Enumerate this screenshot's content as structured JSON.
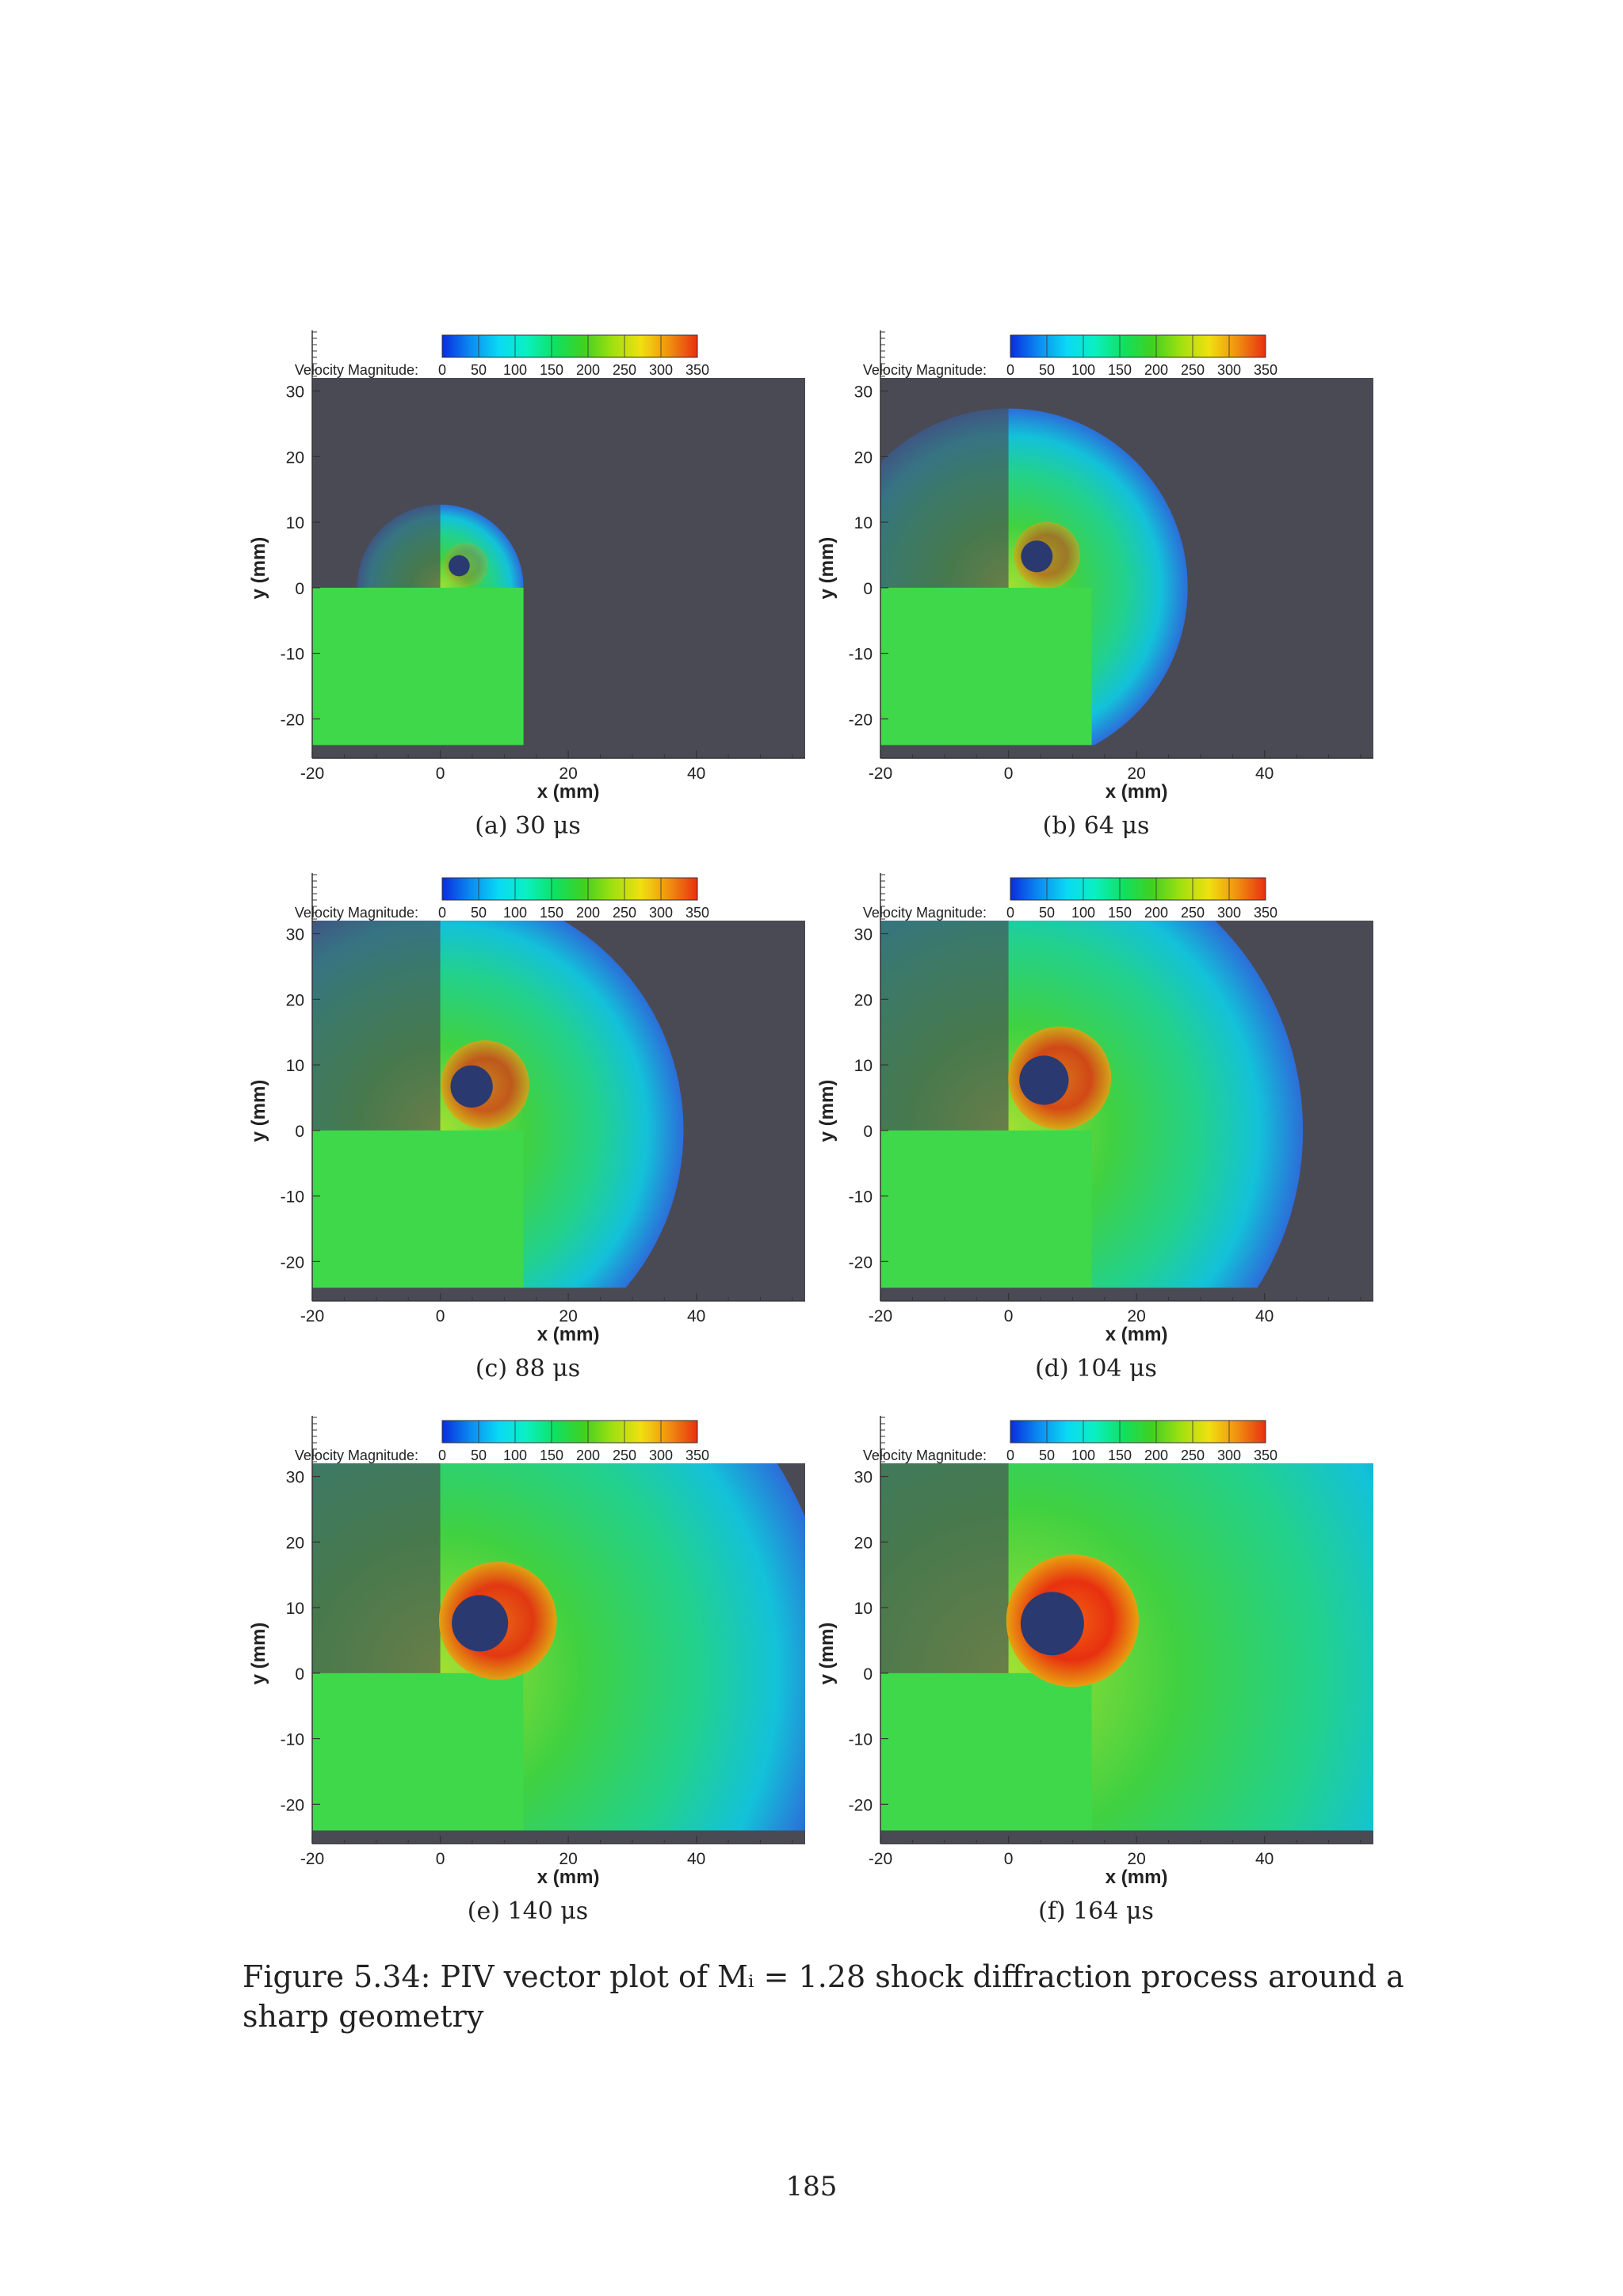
{
  "colors": {
    "plot_background": "#4a4a55",
    "colormap": [
      "#0a2be0",
      "#0a8cf0",
      "#0ad9f5",
      "#0af0c0",
      "#10e060",
      "#40d020",
      "#a0e010",
      "#f0e010",
      "#f09010",
      "#e83010"
    ]
  },
  "colorbar": {
    "label": "Velocity Magnitude:",
    "ticks": [
      "0",
      "50",
      "100",
      "150",
      "200",
      "250",
      "300",
      "350"
    ]
  },
  "axes": {
    "xlabel": "x (mm)",
    "ylabel": "y (mm)",
    "xticks": [
      "-20",
      "0",
      "20",
      "40"
    ],
    "yticks": [
      "30",
      "20",
      "10",
      "0",
      "-10",
      "-20"
    ]
  },
  "panels": [
    {
      "caption": "(a) 30 μs",
      "time_us": 30
    },
    {
      "caption": "(b) 64 μs",
      "time_us": 64
    },
    {
      "caption": "(c) 88 μs",
      "time_us": 88
    },
    {
      "caption": "(d) 104 μs",
      "time_us": 104
    },
    {
      "caption": "(e) 140 μs",
      "time_us": 140
    },
    {
      "caption": "(f) 164 μs",
      "time_us": 164
    }
  ],
  "figure_caption": "Figure 5.34: PIV vector plot of Mᵢ = 1.28 shock diffraction process around a sharp geometry",
  "page_number": "185"
}
